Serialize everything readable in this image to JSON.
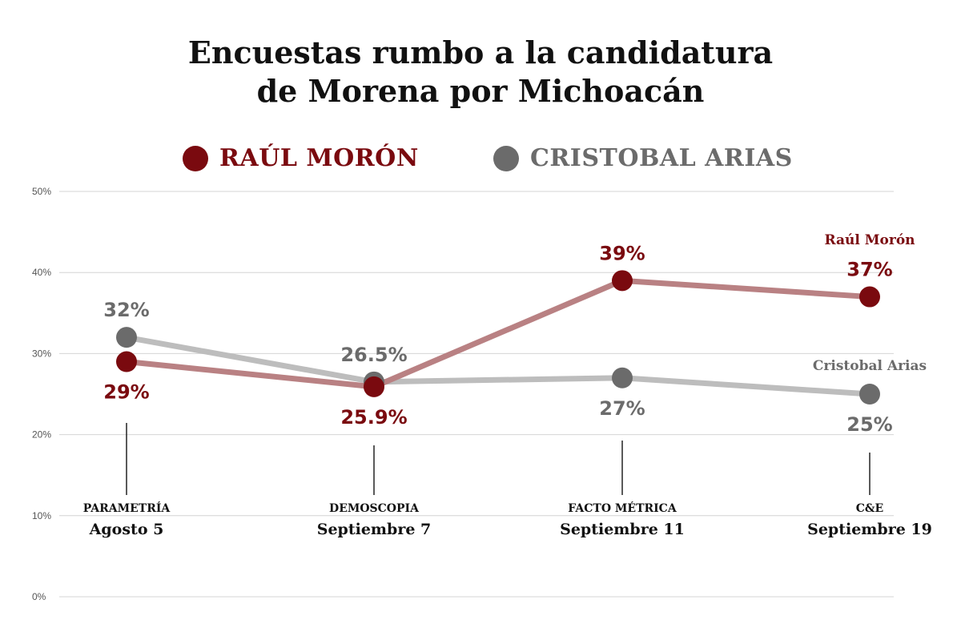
{
  "title_lines": [
    "Encuestas rumbo a la candidatura",
    "de Morena por Michoacán"
  ],
  "legend": [
    {
      "label": "RAÚL MORÓN",
      "color": "#7a0a0f"
    },
    {
      "label": "CRISTOBAL ARIAS",
      "color": "#6b6b6b"
    }
  ],
  "chart_data": {
    "type": "line",
    "title": "Encuestas rumbo a la candidatura de Morena por Michoacán",
    "y_ticks": [
      "50%",
      "40%",
      "30%",
      "20%",
      "10%",
      "0%"
    ],
    "ylim": [
      0,
      50
    ],
    "grid": true,
    "legend_position": "top",
    "categories": [
      {
        "source": "PARAMETRÍA",
        "date": "Agosto 5"
      },
      {
        "source": "DEMOSCOPIA",
        "date": "Septiembre 7"
      },
      {
        "source": "FACTO MÉTRICA",
        "date": "Septiembre 11"
      },
      {
        "source": "C&E",
        "date": "Septiembre 19"
      }
    ],
    "series": [
      {
        "name": "RAÚL MORÓN",
        "end_label": "Raúl Morón",
        "color": "#7a0a0f",
        "line_color": "#b98183",
        "values": [
          29,
          25.9,
          39,
          37
        ],
        "labels": [
          "29%",
          "25.9%",
          "39%",
          "37%"
        ]
      },
      {
        "name": "CRISTOBAL ARIAS",
        "end_label": "Cristobal Arias",
        "color": "#6b6b6b",
        "line_color": "#bdbdbd",
        "values": [
          32,
          26.5,
          27,
          25
        ],
        "labels": [
          "32%",
          "26.5%",
          "27%",
          "25%"
        ]
      }
    ]
  }
}
